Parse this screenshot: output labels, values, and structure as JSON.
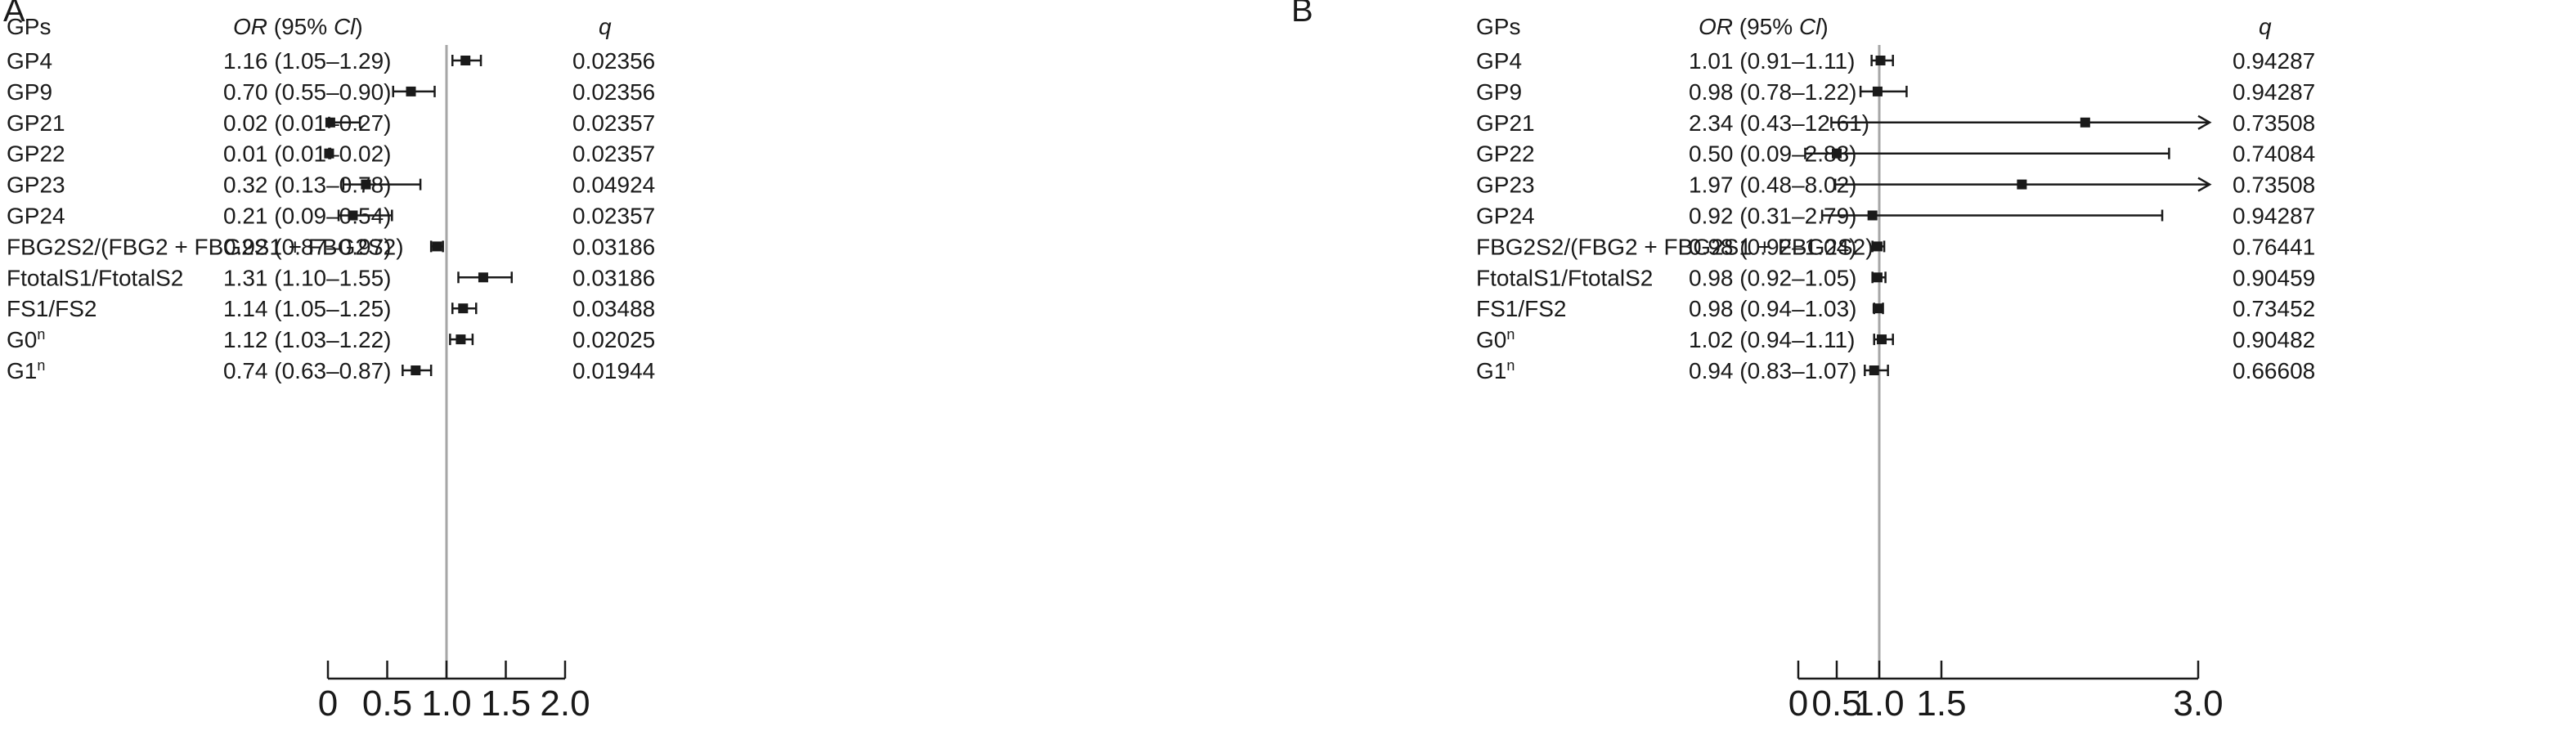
{
  "panels": [
    {
      "letter": "A",
      "header_gps": "GPs",
      "header_or": "OR",
      "header_ci": " (95% ",
      "header_ci_italic": "Cl",
      "header_close": ")",
      "header_q": "q",
      "chart_data": {
        "type": "forest",
        "xlim": [
          0,
          2.0
        ],
        "reference_line": 1.0,
        "x_ticks": [
          0,
          0.5,
          1.0,
          1.5,
          2.0
        ],
        "x_tick_labels": [
          "0",
          "0.5",
          "1.0",
          "1.5",
          "2.0"
        ],
        "rows": [
          {
            "label": "GP4",
            "sup": "",
            "or_text": "1.16 (1.05–1.29)",
            "or": 1.16,
            "lo": 1.05,
            "hi": 1.29,
            "q": "0.02356"
          },
          {
            "label": "GP9",
            "sup": "",
            "or_text": "0.70 (0.55–0.90)",
            "or": 0.7,
            "lo": 0.55,
            "hi": 0.9,
            "q": "0.02356"
          },
          {
            "label": "GP21",
            "sup": "",
            "or_text": "0.02 (0.01–0.27)",
            "or": 0.02,
            "lo": 0.01,
            "hi": 0.27,
            "q": "0.02357"
          },
          {
            "label": "GP22",
            "sup": "",
            "or_text": "0.01 (0.01–0.02)",
            "or": 0.01,
            "lo": 0.01,
            "hi": 0.02,
            "q": "0.02357"
          },
          {
            "label": "GP23",
            "sup": "",
            "or_text": "0.32 (0.13–0.78)",
            "or": 0.32,
            "lo": 0.13,
            "hi": 0.78,
            "q": "0.04924"
          },
          {
            "label": "GP24",
            "sup": "",
            "or_text": "0.21 (0.09–0.54)",
            "or": 0.21,
            "lo": 0.09,
            "hi": 0.54,
            "q": "0.02357"
          },
          {
            "label": "FBG2S2/(FBG2 + FBG2S1 + FBG2S2)",
            "sup": "",
            "or_text": "0.92 (0.87–0.97)",
            "or": 0.92,
            "lo": 0.87,
            "hi": 0.97,
            "q": "0.03186"
          },
          {
            "label": "FtotalS1/FtotalS2",
            "sup": "",
            "or_text": "1.31 (1.10–1.55)",
            "or": 1.31,
            "lo": 1.1,
            "hi": 1.55,
            "q": "0.03186"
          },
          {
            "label": "FS1/FS2",
            "sup": "",
            "or_text": "1.14 (1.05–1.25)",
            "or": 1.14,
            "lo": 1.05,
            "hi": 1.25,
            "q": "0.03488"
          },
          {
            "label": "G0",
            "sup": "n",
            "or_text": "1.12 (1.03–1.22)",
            "or": 1.12,
            "lo": 1.03,
            "hi": 1.22,
            "q": "0.02025"
          },
          {
            "label": "G1",
            "sup": "n",
            "or_text": "0.74 (0.63–0.87)",
            "or": 0.74,
            "lo": 0.63,
            "hi": 0.87,
            "q": "0.01944"
          }
        ]
      }
    },
    {
      "letter": "B",
      "header_gps": "GPs",
      "header_or": "OR",
      "header_ci": " (95% ",
      "header_ci_italic": "Cl",
      "header_close": ")",
      "header_q": "q",
      "chart_data": {
        "type": "forest",
        "xlim": [
          0,
          3.0
        ],
        "reference_line": 1.0,
        "x_ticks": [
          0,
          0.5,
          1.0,
          1.5,
          3.0
        ],
        "x_tick_labels": [
          "0",
          "0.5",
          "1.0",
          "1.5",
          "3.0"
        ],
        "rows": [
          {
            "label": "GP4",
            "sup": "",
            "or_text": "1.01 (0.91–1.11)",
            "or": 1.01,
            "lo": 0.91,
            "hi": 1.11,
            "q": "0.94287"
          },
          {
            "label": "GP9",
            "sup": "",
            "or_text": "0.98 (0.78–1.22)",
            "or": 0.98,
            "lo": 0.78,
            "hi": 1.22,
            "q": "0.94287"
          },
          {
            "label": "GP21",
            "sup": "",
            "or_text": "2.34 (0.43–12.61)",
            "or": 2.34,
            "lo": 0.43,
            "hi": 12.61,
            "q": "0.73508"
          },
          {
            "label": "GP22",
            "sup": "",
            "or_text": "0.50 (0.09–2.83)",
            "or": 0.5,
            "lo": 0.09,
            "hi": 2.83,
            "q": "0.74084"
          },
          {
            "label": "GP23",
            "sup": "",
            "or_text": "1.97 (0.48–8.02)",
            "or": 1.97,
            "lo": 0.48,
            "hi": 8.02,
            "q": "0.73508"
          },
          {
            "label": "GP24",
            "sup": "",
            "or_text": "0.92 (0.31–2.79)",
            "or": 0.92,
            "lo": 0.31,
            "hi": 2.79,
            "q": "0.94287"
          },
          {
            "label": "FBG2S2/(FBG2 + FBG2S1 + FBG2S2)",
            "sup": "",
            "or_text": "0.98 (0.92–1.04)",
            "or": 0.98,
            "lo": 0.92,
            "hi": 1.04,
            "q": "0.76441"
          },
          {
            "label": "FtotalS1/FtotalS2",
            "sup": "",
            "or_text": "0.98 (0.92–1.05)",
            "or": 0.98,
            "lo": 0.92,
            "hi": 1.05,
            "q": "0.90459"
          },
          {
            "label": "FS1/FS2",
            "sup": "",
            "or_text": "0.98 (0.94–1.03)",
            "or": 0.98,
            "lo": 0.94,
            "hi": 1.03,
            "q": "0.73452"
          },
          {
            "label": "G0",
            "sup": "n",
            "or_text": "1.02 (0.94–1.11)",
            "or": 1.02,
            "lo": 0.94,
            "hi": 1.11,
            "q": "0.90482"
          },
          {
            "label": "G1",
            "sup": "n",
            "or_text": "0.94 (0.83–1.07)",
            "or": 0.94,
            "lo": 0.83,
            "hi": 1.07,
            "q": "0.66608"
          }
        ]
      }
    }
  ]
}
